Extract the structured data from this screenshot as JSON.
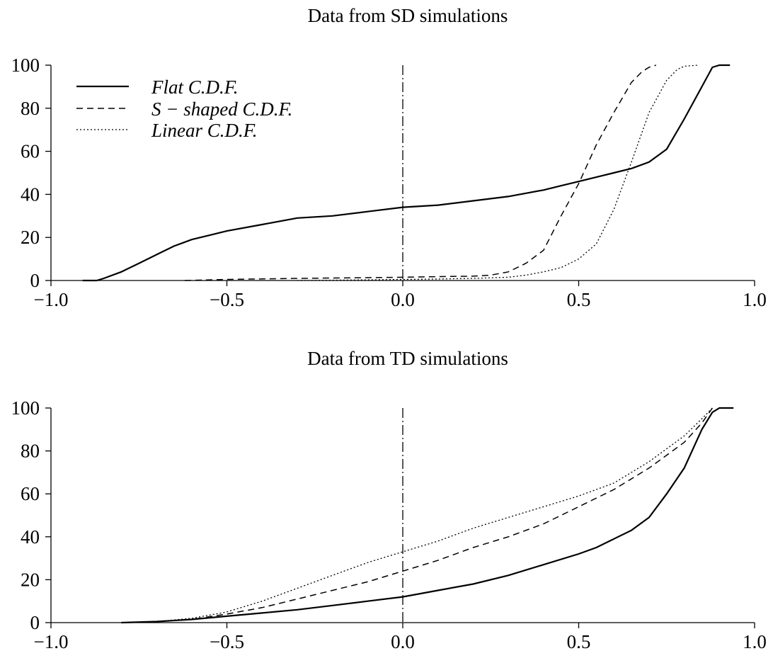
{
  "chart_data": [
    {
      "type": "line",
      "title": "Data from SD simulations",
      "xlabel": "",
      "ylabel": "",
      "xlim": [
        -1.0,
        1.0
      ],
      "ylim": [
        0,
        100
      ],
      "xticks": [
        "−1.0",
        "−0.5",
        "0.0",
        "0.5",
        "1.0"
      ],
      "yticks": [
        "0",
        "20",
        "40",
        "60",
        "80",
        "100"
      ],
      "grid": false,
      "legend_position": "top-left",
      "reference_line_x": 0.0,
      "series": [
        {
          "name": "Flat C.D.F.",
          "style": "solid",
          "x": [
            -0.91,
            -0.87,
            -0.85,
            -0.8,
            -0.75,
            -0.7,
            -0.65,
            -0.6,
            -0.55,
            -0.5,
            -0.4,
            -0.3,
            -0.2,
            -0.1,
            0.0,
            0.1,
            0.2,
            0.3,
            0.4,
            0.45,
            0.5,
            0.55,
            0.6,
            0.65,
            0.7,
            0.75,
            0.8,
            0.85,
            0.88,
            0.9,
            0.93
          ],
          "y": [
            0,
            0,
            1,
            4,
            8,
            12,
            16,
            19,
            21,
            23,
            26,
            29,
            30,
            32,
            34,
            35,
            37,
            39,
            42,
            44,
            46,
            48,
            50,
            52,
            55,
            61,
            75,
            90,
            99,
            100,
            100
          ]
        },
        {
          "name": "S − shaped C.D.F.",
          "style": "dashed",
          "x": [
            -0.62,
            -0.5,
            -0.3,
            -0.1,
            0.0,
            0.1,
            0.2,
            0.25,
            0.3,
            0.35,
            0.4,
            0.45,
            0.5,
            0.55,
            0.6,
            0.65,
            0.68,
            0.7,
            0.72
          ],
          "y": [
            0,
            0.5,
            1,
            1.3,
            1.5,
            1.8,
            2,
            2.5,
            4,
            8,
            14,
            30,
            45,
            63,
            78,
            92,
            97,
            99,
            100
          ]
        },
        {
          "name": "Linear C.D.F.",
          "style": "dotted",
          "x": [
            -0.3,
            -0.1,
            0.0,
            0.1,
            0.2,
            0.3,
            0.35,
            0.4,
            0.45,
            0.5,
            0.55,
            0.6,
            0.65,
            0.7,
            0.75,
            0.78,
            0.8,
            0.84
          ],
          "y": [
            0,
            0.3,
            0.5,
            0.7,
            1,
            1.5,
            2.5,
            4,
            6,
            10,
            17,
            33,
            55,
            78,
            93,
            98,
            99.5,
            100
          ]
        }
      ]
    },
    {
      "type": "line",
      "title": "Data from TD simulations",
      "xlabel": "",
      "ylabel": "",
      "xlim": [
        -1.0,
        1.0
      ],
      "ylim": [
        0,
        100
      ],
      "xticks": [
        "−1.0",
        "−0.5",
        "0.0",
        "0.5",
        "1.0"
      ],
      "yticks": [
        "0",
        "20",
        "40",
        "60",
        "80",
        "100"
      ],
      "grid": false,
      "reference_line_x": 0.0,
      "series": [
        {
          "name": "Flat C.D.F.",
          "style": "solid",
          "x": [
            -0.8,
            -0.7,
            -0.6,
            -0.5,
            -0.4,
            -0.3,
            -0.2,
            -0.1,
            0.0,
            0.1,
            0.2,
            0.3,
            0.4,
            0.5,
            0.55,
            0.6,
            0.65,
            0.7,
            0.75,
            0.8,
            0.85,
            0.88,
            0.9,
            0.94
          ],
          "y": [
            0,
            0.5,
            1.5,
            3,
            4.5,
            6,
            8,
            10,
            12,
            15,
            18,
            22,
            27,
            32,
            35,
            39,
            43,
            49,
            60,
            72,
            90,
            98,
            100,
            100
          ]
        },
        {
          "name": "S − shaped C.D.F.",
          "style": "dashed",
          "x": [
            -0.8,
            -0.7,
            -0.6,
            -0.5,
            -0.4,
            -0.3,
            -0.2,
            -0.1,
            0.0,
            0.1,
            0.2,
            0.3,
            0.4,
            0.5,
            0.6,
            0.7,
            0.8,
            0.85,
            0.88
          ],
          "y": [
            0,
            0.5,
            1.5,
            4,
            7,
            11,
            15,
            19,
            24,
            29,
            35,
            40,
            46,
            54,
            62,
            72,
            84,
            93,
            100
          ]
        },
        {
          "name": "Linear C.D.F.",
          "style": "dotted",
          "x": [
            -0.8,
            -0.7,
            -0.6,
            -0.5,
            -0.4,
            -0.3,
            -0.2,
            -0.1,
            0.0,
            0.1,
            0.2,
            0.3,
            0.4,
            0.5,
            0.6,
            0.7,
            0.8,
            0.85,
            0.88
          ],
          "y": [
            0,
            0.5,
            2,
            5,
            10,
            16,
            22,
            28,
            33,
            38,
            44,
            49,
            54,
            59,
            65,
            75,
            87,
            95,
            100
          ]
        }
      ]
    }
  ]
}
